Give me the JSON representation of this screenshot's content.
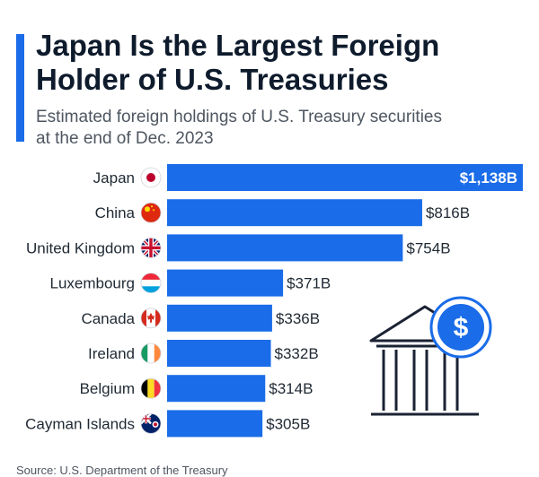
{
  "header": {
    "title_line1": "Japan Is the Largest Foreign",
    "title_line2": "Holder of U.S. Treasuries",
    "subtitle_line1": "Estimated foreign holdings of U.S. Treasury securities",
    "subtitle_line2": "at the end of Dec. 2023"
  },
  "colors": {
    "bar": "#1a6ce8",
    "accent": "#1a6ce8",
    "title": "#0e1b2c",
    "text": "#1f2933"
  },
  "chart_data": {
    "type": "bar",
    "orientation": "horizontal",
    "title": "Japan Is the Largest Foreign Holder of U.S. Treasuries",
    "subtitle": "Estimated foreign holdings of U.S. Treasury securities at the end of Dec. 2023",
    "categories": [
      "Japan",
      "China",
      "United Kingdom",
      "Luxembourg",
      "Canada",
      "Ireland",
      "Belgium",
      "Cayman Islands"
    ],
    "values": [
      1138,
      816,
      754,
      371,
      336,
      332,
      314,
      305
    ],
    "value_labels": [
      "$1,138B",
      "$816B",
      "$754B",
      "$371B",
      "$336B",
      "$332B",
      "$314B",
      "$305B"
    ],
    "flag_icons": [
      "japan-flag-icon",
      "china-flag-icon",
      "united-kingdom-flag-icon",
      "luxembourg-flag-icon",
      "canada-flag-icon",
      "ireland-flag-icon",
      "belgium-flag-icon",
      "cayman-islands-flag-icon"
    ],
    "xlim": [
      0,
      1138
    ],
    "grid": false,
    "legend": "none"
  },
  "illustration": {
    "icon": "bank-building-dollar-icon",
    "symbol": "$"
  },
  "footer": {
    "source": "Source: U.S. Department of the Treasury"
  }
}
